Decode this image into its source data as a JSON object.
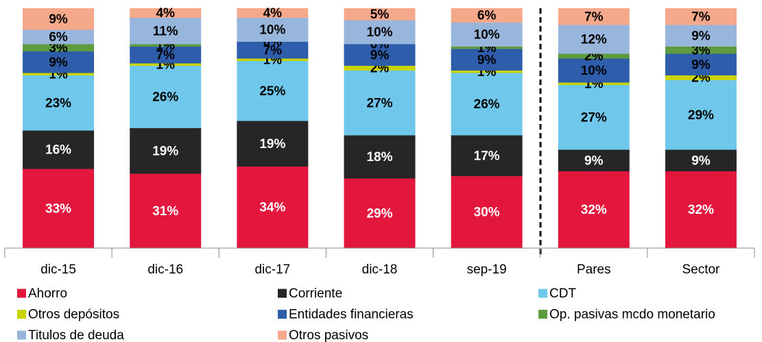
{
  "chart_data": {
    "type": "stacked-bar",
    "categories": [
      "dic-15",
      "dic-16",
      "dic-17",
      "dic-18",
      "sep-19",
      "Pares",
      "Sector"
    ],
    "ylim": [
      0,
      100
    ],
    "series": [
      {
        "name": "Ahorro",
        "color": "#e3173e",
        "values": [
          33,
          31,
          34,
          29,
          30,
          32,
          32
        ],
        "value_labels": [
          "33%",
          "31%",
          "34%",
          "29%",
          "30%",
          "32%",
          "32%"
        ]
      },
      {
        "name": "Corriente",
        "color": "#262626",
        "values": [
          16,
          19,
          19,
          18,
          17,
          9,
          9
        ],
        "value_labels": [
          "16%",
          "19%",
          "19%",
          "18%",
          "17%",
          "9%",
          "9%"
        ]
      },
      {
        "name": "CDT",
        "color": "#6fc8eb",
        "values": [
          23,
          26,
          25,
          27,
          26,
          27,
          29
        ],
        "value_labels": [
          "23%",
          "26%",
          "25%",
          "27%",
          "26%",
          "27%",
          "29%"
        ]
      },
      {
        "name": "Otros depósitos",
        "color": "#c9d400",
        "values": [
          1,
          1,
          1,
          2,
          1,
          1,
          2
        ],
        "value_labels": [
          "1%",
          "1%",
          "1%",
          "2%",
          "1%",
          "1%",
          "2%"
        ]
      },
      {
        "name": "Entidades financieras",
        "color": "#2e5dab",
        "values": [
          9,
          7,
          7,
          9,
          9,
          10,
          9
        ],
        "value_labels": [
          "9%",
          "7%",
          "7%",
          "9%",
          "9%",
          "10%",
          "9%"
        ]
      },
      {
        "name": "Op. pasivas mcdo monetario",
        "color": "#5e9b3e",
        "values": [
          3,
          1,
          0,
          0,
          1,
          2,
          3
        ],
        "value_labels": [
          "3%",
          "1%",
          "0%",
          "0%",
          "1%",
          "2%",
          "3%"
        ]
      },
      {
        "name": "Titulos de deuda",
        "color": "#98b5dc",
        "values": [
          6,
          11,
          10,
          10,
          10,
          12,
          9
        ],
        "value_labels": [
          "6%",
          "11%",
          "10%",
          "10%",
          "10%",
          "12%",
          "9%"
        ]
      },
      {
        "name": "Otros pasivos",
        "color": "#f5a88a",
        "values": [
          9,
          4,
          4,
          5,
          6,
          7,
          7
        ],
        "value_labels": [
          "9%",
          "4%",
          "4%",
          "5%",
          "6%",
          "7%",
          "7%"
        ]
      }
    ]
  }
}
